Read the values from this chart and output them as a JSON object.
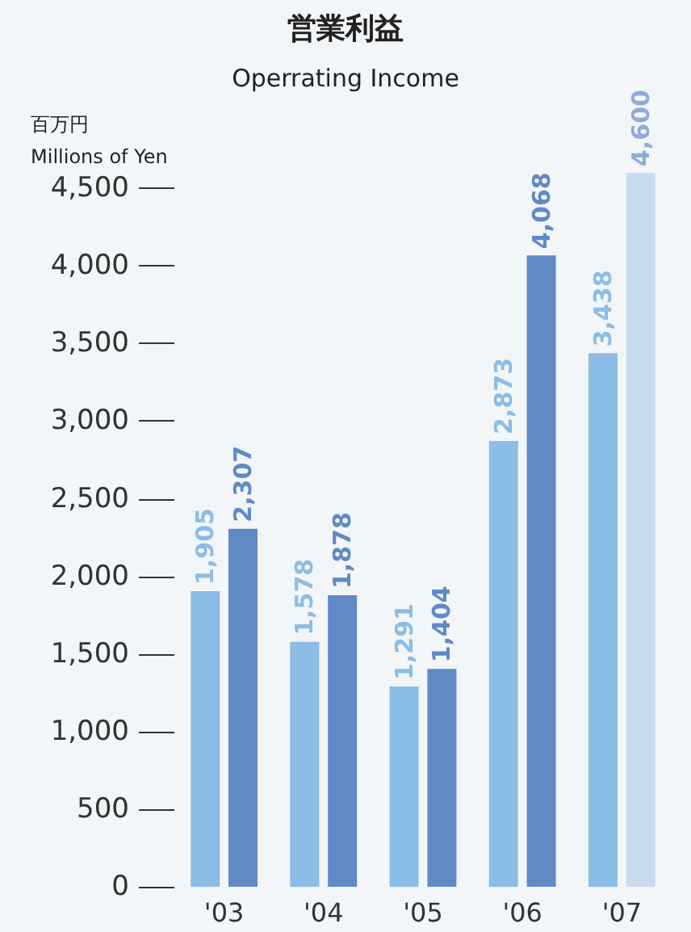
{
  "chart_data": {
    "type": "bar",
    "title": "営業利益",
    "subtitle": "Operrating Income",
    "ylabel": "百万円\nMillions of Yen",
    "categories": [
      "'03",
      "'04",
      "'05",
      "'06",
      "'07"
    ],
    "series": [
      {
        "color": "#8bbde6",
        "values": [
          1905,
          1578,
          1291,
          2873,
          3438
        ],
        "value_labels": [
          "1,905",
          "1,578",
          "1,291",
          "2,873",
          "3,438"
        ]
      },
      {
        "colors": [
          "#6089c6",
          "#6089c6",
          "#6089c6",
          "#6089c6",
          "#c9dbef"
        ],
        "values": [
          2307,
          1878,
          1404,
          4068,
          4600
        ],
        "value_labels": [
          "2,307",
          "1,878",
          "1,404",
          "4,068",
          "4,600"
        ]
      }
    ],
    "ylim": [
      0,
      4600
    ],
    "yticks": [
      0,
      500,
      {
        "value": 1000,
        "label": "1,000"
      },
      {
        "value": 1500,
        "label": "1,500"
      },
      {
        "value": 2000,
        "label": "2,000"
      },
      {
        "value": 2500,
        "label": "2,500"
      },
      {
        "value": 3000,
        "label": "3,000"
      },
      {
        "value": 3500,
        "label": "3,500"
      },
      {
        "value": 4000,
        "label": "4,000"
      },
      {
        "value": 4500,
        "label": "4,500"
      }
    ],
    "grid": false
  }
}
